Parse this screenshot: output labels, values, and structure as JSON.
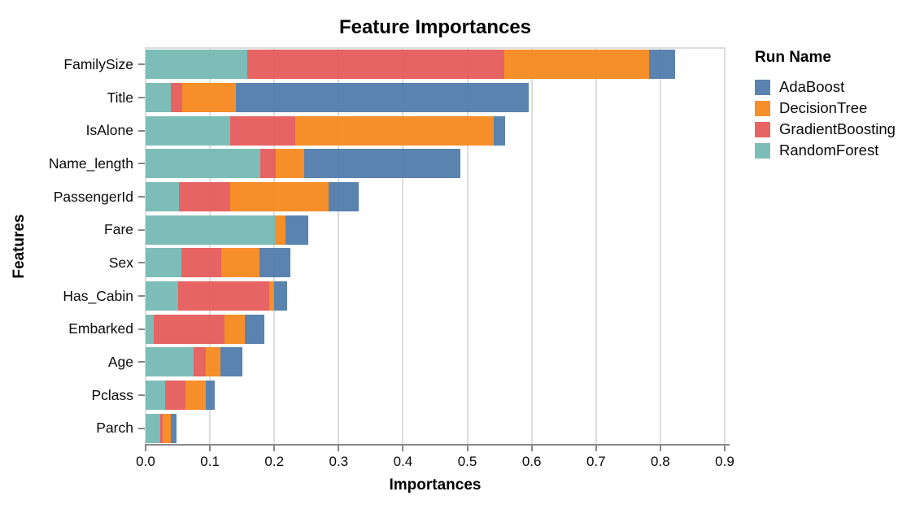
{
  "title": "Feature Importances",
  "x_axis": {
    "title": "Importances",
    "tick_labels": [
      "0.0",
      "0.1",
      "0.2",
      "0.3",
      "0.4",
      "0.5",
      "0.6",
      "0.7",
      "0.8",
      "0.9"
    ],
    "min": 0.0,
    "max": 0.9
  },
  "y_axis": {
    "title": "Features"
  },
  "legend": {
    "title": "Run Name",
    "entries": [
      {
        "label": "AdaBoost",
        "color": "#4c78a8"
      },
      {
        "label": "DecisionTree",
        "color": "#f58518"
      },
      {
        "label": "GradientBoosting",
        "color": "#e45756"
      },
      {
        "label": "RandomForest",
        "color": "#72b7b2"
      }
    ]
  },
  "colors": {
    "AdaBoost": "#4c78a8",
    "DecisionTree": "#f58518",
    "GradientBoosting": "#e45756",
    "RandomForest": "#72b7b2",
    "gridline": "#dddddd",
    "axis_line": "#888888",
    "background": "#ffffff"
  },
  "chart_data": {
    "type": "bar",
    "orientation": "horizontal",
    "stacked": true,
    "title": "Feature Importances",
    "xlabel": "Importances",
    "ylabel": "Features",
    "xlim": [
      0,
      0.9
    ],
    "grid": true,
    "legend_position": "right",
    "categories": [
      "FamilySize",
      "Title",
      "IsAlone",
      "Name_length",
      "PassengerId",
      "Fare",
      "Sex",
      "Has_Cabin",
      "Embarked",
      "Age",
      "Pclass",
      "Parch"
    ],
    "stack_order_left_to_right": [
      "RandomForest",
      "GradientBoosting",
      "DecisionTree",
      "AdaBoost"
    ],
    "series": [
      {
        "name": "RandomForest",
        "color": "#72b7b2",
        "values": [
          0.158,
          0.039,
          0.131,
          0.178,
          0.052,
          0.201,
          0.055,
          0.051,
          0.013,
          0.074,
          0.03,
          0.023
        ]
      },
      {
        "name": "GradientBoosting",
        "color": "#e45756",
        "values": [
          0.399,
          0.018,
          0.102,
          0.024,
          0.08,
          0.0,
          0.063,
          0.141,
          0.109,
          0.019,
          0.032,
          0.003
        ]
      },
      {
        "name": "DecisionTree",
        "color": "#f58518",
        "values": [
          0.226,
          0.083,
          0.308,
          0.044,
          0.153,
          0.017,
          0.059,
          0.008,
          0.032,
          0.023,
          0.031,
          0.013
        ]
      },
      {
        "name": "AdaBoost",
        "color": "#4c78a8",
        "values": [
          0.04,
          0.456,
          0.018,
          0.243,
          0.046,
          0.035,
          0.048,
          0.02,
          0.031,
          0.035,
          0.015,
          0.009
        ]
      }
    ],
    "totals": [
      0.823,
      0.596,
      0.559,
      0.489,
      0.331,
      0.253,
      0.225,
      0.22,
      0.185,
      0.151,
      0.108,
      0.048
    ]
  }
}
